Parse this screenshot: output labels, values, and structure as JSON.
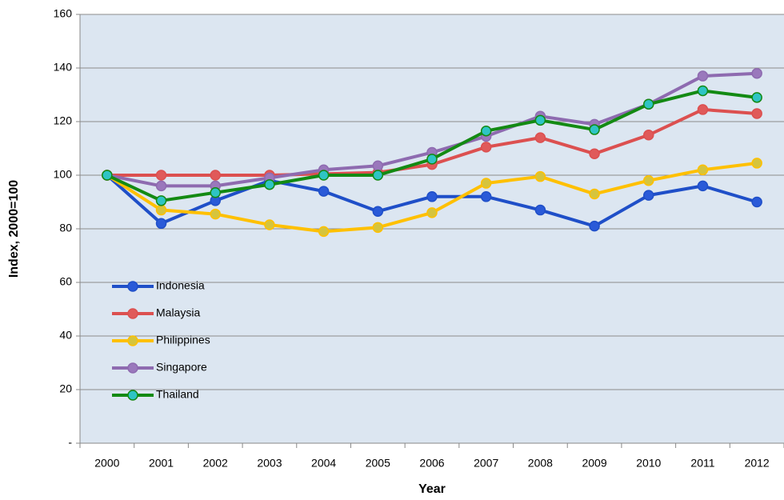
{
  "chart_data": {
    "type": "line",
    "x_label": "Year",
    "y_label": "Index, 2000=100",
    "categories": [
      "2000",
      "2001",
      "2002",
      "2003",
      "2004",
      "2005",
      "2006",
      "2007",
      "2008",
      "2009",
      "2010",
      "2011",
      "2012"
    ],
    "series": [
      {
        "name": "Indonesia",
        "color": "#1f4fc8",
        "marker_color": "#2a5ad8",
        "values": [
          100,
          82,
          90.5,
          98,
          94,
          86.5,
          92,
          92,
          87,
          81,
          92.5,
          96,
          90
        ]
      },
      {
        "name": "Malaysia",
        "color": "#dc5050",
        "marker_color": "#e05a5a",
        "values": [
          100,
          100,
          100,
          100,
          100.5,
          101,
          104,
          110.5,
          114,
          108,
          115,
          124.5,
          123
        ]
      },
      {
        "name": "Philippines",
        "color": "#ffc000",
        "marker_color": "#d6c43c",
        "values": [
          100,
          87,
          85.5,
          81.5,
          79,
          80.5,
          86,
          97,
          99.5,
          93,
          98,
          102,
          104.5
        ]
      },
      {
        "name": "Singapore",
        "color": "#8e6bb0",
        "marker_color": "#9a78bc",
        "values": [
          100,
          96,
          96,
          99,
          102,
          103.5,
          108.5,
          114.5,
          122,
          119,
          126.5,
          137,
          138
        ]
      },
      {
        "name": "Thailand",
        "color": "#138a13",
        "marker_color": "#2ec4c4",
        "values": [
          100,
          90.5,
          93.5,
          96.5,
          100,
          100,
          106,
          116.5,
          120.5,
          117,
          126.5,
          131.5,
          129
        ]
      }
    ],
    "ylim": [
      0,
      160
    ],
    "yticks": [
      {
        "value": 0,
        "label": "-"
      },
      20,
      40,
      60,
      80,
      100,
      120,
      140,
      160
    ],
    "grid": true,
    "legend": "left",
    "plot_background": "#dce6f1"
  }
}
